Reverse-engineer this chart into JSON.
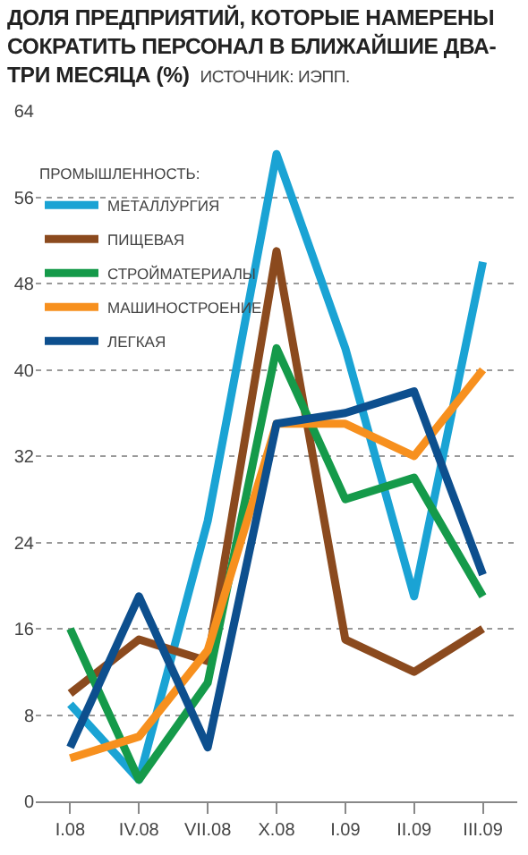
{
  "chart_data": {
    "type": "line",
    "title": "ДОЛЯ ПРЕДПРИЯТИЙ, КОТОРЫЕ НАМЕРЕНЫ СОКРАТИТЬ ПЕРСОНАЛ В БЛИЖАЙШИЕ ДВА-ТРИ МЕСЯЦА (%)",
    "annotations": [
      "ИСТОЧНИК: ИЭПП."
    ],
    "legend_title": "ПРОМЫШЛЕННОСТЬ:",
    "categories": [
      "I.08",
      "IV.08",
      "VII.08",
      "X.08",
      "I.09",
      "II.09",
      "III.09"
    ],
    "series": [
      {
        "name": "МЕТАЛЛУРГИЯ",
        "color": "#1aa3d4",
        "values": [
          9,
          2,
          26,
          60,
          42,
          19,
          50
        ]
      },
      {
        "name": "ПИЩЕВАЯ",
        "color": "#8b4a1e",
        "values": [
          10,
          15,
          13,
          51,
          15,
          12,
          16
        ]
      },
      {
        "name": "СТРОЙМАТЕРИАЛЫ",
        "color": "#159a4a",
        "values": [
          16,
          2,
          11,
          42,
          28,
          30,
          19
        ]
      },
      {
        "name": "МАШИНОСТРОЕНИЕ",
        "color": "#f7901e",
        "values": [
          4,
          6,
          14,
          35,
          35,
          32,
          40
        ]
      },
      {
        "name": "ЛЕГКАЯ",
        "color": "#0d4f8e",
        "values": [
          5,
          19,
          5,
          35,
          36,
          38,
          21
        ]
      }
    ],
    "ylim": [
      0,
      64
    ],
    "yticks": [
      0,
      8,
      16,
      24,
      32,
      40,
      48,
      56,
      64
    ],
    "grid": "y",
    "legend": "top left",
    "marker": "none",
    "line_style": "solid"
  }
}
